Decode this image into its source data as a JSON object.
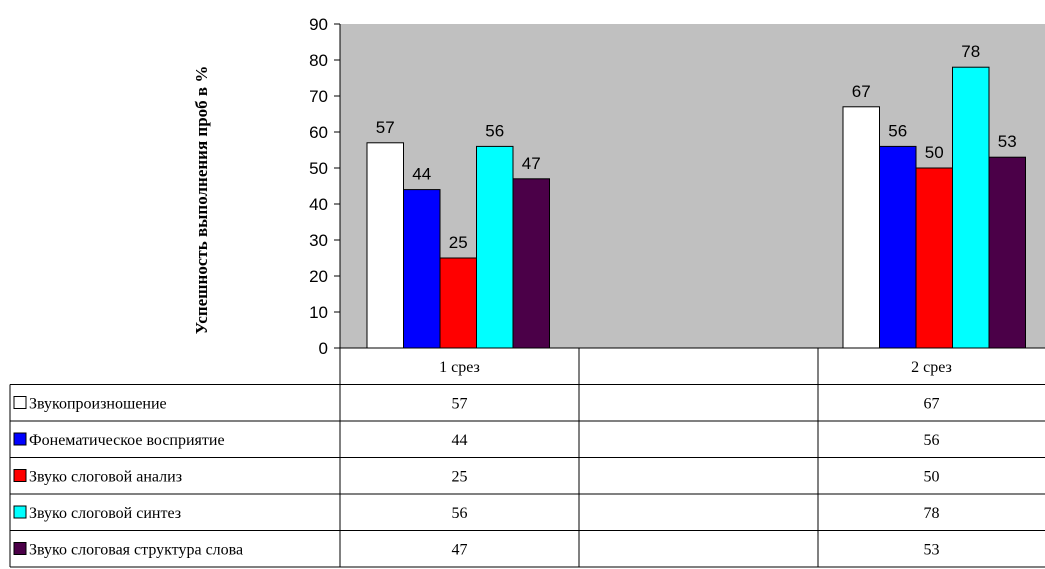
{
  "chart_data": {
    "type": "bar",
    "ylabel": "Успешность выполнения проб в %",
    "ylim": [
      0,
      90
    ],
    "yticks": [
      0,
      10,
      20,
      30,
      40,
      50,
      60,
      70,
      80,
      90
    ],
    "categories": [
      "1 срез",
      "",
      "2 срез"
    ],
    "series": [
      {
        "name": "Звукопроизношение",
        "color": "#ffffff",
        "values": [
          57,
          null,
          67
        ]
      },
      {
        "name": "Фонематическое восприятие",
        "color": "#0000ff",
        "values": [
          44,
          null,
          56
        ]
      },
      {
        "name": "Звуко слоговой анализ",
        "color": "#ff0000",
        "values": [
          25,
          null,
          50
        ]
      },
      {
        "name": "Звуко слоговой синтез",
        "color": "#00ffff",
        "values": [
          56,
          null,
          78
        ]
      },
      {
        "name": "Звуко слоговая структура слова",
        "color": "#4b0048",
        "values": [
          47,
          null,
          53
        ]
      }
    ],
    "plot_background": "#c0c0c0",
    "legend": "data-table-left",
    "grid": false
  }
}
